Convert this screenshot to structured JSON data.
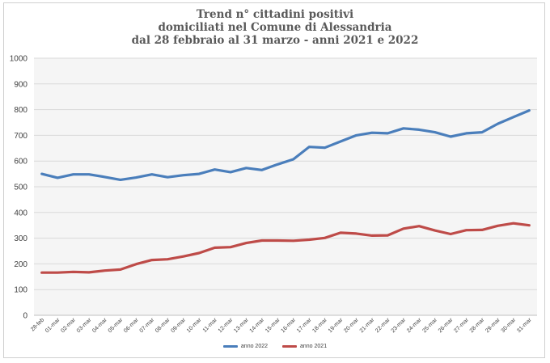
{
  "chart_data": {
    "type": "line",
    "title_lines": [
      "Trend n° cittadini positivi",
      "domiciliati nel Comune di Alessandria",
      "dal 28 febbraio al 31 marzo - anni 2021 e 2022"
    ],
    "xlabel": "",
    "ylabel": "",
    "ylim": [
      0,
      1000
    ],
    "yticks": [
      0,
      100,
      200,
      300,
      400,
      500,
      600,
      700,
      800,
      900,
      1000
    ],
    "grid": true,
    "legend_position": "bottom",
    "categories": [
      "28-feb",
      "01-mar",
      "02-mar",
      "03-mar",
      "04-mar",
      "05-mar",
      "06-mar",
      "07-mar",
      "08-mar",
      "09-mar",
      "10-mar",
      "11-mar",
      "12-mar",
      "13-mar",
      "14-mar",
      "15-mar",
      "16-mar",
      "17-mar",
      "18-mar",
      "19-mar",
      "20-mar",
      "21-mar",
      "22-mar",
      "23-mar",
      "24-mar",
      "25-mar",
      "26-mar",
      "27-mar",
      "28-mar",
      "29-mar",
      "30-mar",
      "31-mar"
    ],
    "series": [
      {
        "name": "anno 2022",
        "color": "#4a7ebb",
        "values": [
          550,
          535,
          548,
          548,
          538,
          527,
          536,
          548,
          537,
          545,
          550,
          567,
          557,
          573,
          565,
          587,
          607,
          655,
          652,
          676,
          700,
          710,
          708,
          727,
          722,
          712,
          695,
          708,
          712,
          745,
          771,
          797
        ]
      },
      {
        "name": "anno 2021",
        "color": "#be4b48",
        "values": [
          166,
          166,
          169,
          167,
          174,
          178,
          199,
          215,
          218,
          229,
          242,
          263,
          265,
          281,
          291,
          291,
          290,
          294,
          301,
          321,
          318,
          310,
          311,
          337,
          347,
          330,
          316,
          331,
          332,
          348,
          358,
          350
        ]
      }
    ]
  }
}
